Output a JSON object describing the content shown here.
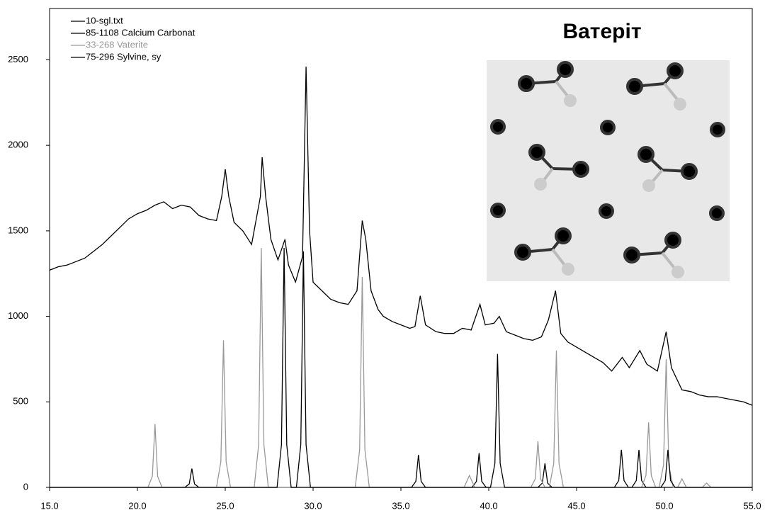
{
  "chart_data": {
    "type": "line",
    "annotations": [
      "Ватеріт"
    ],
    "xlim": [
      15,
      55
    ],
    "xticks": [
      {
        "value": 15,
        "label": "15.0"
      },
      {
        "value": 20,
        "label": "20.0"
      },
      {
        "value": 25,
        "label": "25.0"
      },
      {
        "value": 30,
        "label": "30.0"
      },
      {
        "value": 35,
        "label": "35.0"
      },
      {
        "value": 40,
        "label": "40.0"
      },
      {
        "value": 45,
        "label": "45.0"
      },
      {
        "value": 50,
        "label": "50.0"
      },
      {
        "value": 55,
        "label": "55.0"
      }
    ],
    "ylim": [
      0,
      2800
    ],
    "yticks": [
      0,
      500,
      1000,
      1500,
      2000,
      2500
    ],
    "grid": false,
    "legend": "top-left",
    "series": [
      {
        "name": "10-sgl.txt",
        "color": "#000000",
        "x": [
          15,
          15.5,
          16,
          16.5,
          17,
          17.5,
          18,
          18.5,
          19,
          19.5,
          20,
          20.5,
          21,
          21.5,
          22,
          22.5,
          23,
          23.5,
          24,
          24.5,
          24.8,
          25,
          25.2,
          25.5,
          26,
          26.5,
          27,
          27.1,
          27.3,
          27.6,
          28,
          28.3,
          28.4,
          28.6,
          29,
          29.4,
          29.6,
          29.8,
          30,
          30.5,
          31,
          31.5,
          32,
          32.5,
          32.8,
          33,
          33.3,
          33.7,
          34,
          34.5,
          35,
          35.5,
          35.8,
          36.1,
          36.4,
          37,
          37.5,
          38,
          38.5,
          39,
          39.5,
          39.8,
          40.3,
          40.6,
          41,
          41.5,
          42,
          42.5,
          43,
          43.4,
          43.8,
          44.1,
          44.5,
          45,
          45.5,
          46,
          46.5,
          47,
          47.6,
          48,
          48.6,
          49,
          49.6,
          50.1,
          50.4,
          51,
          51.5,
          52,
          52.5,
          53,
          53.5,
          54,
          54.5,
          55
        ],
        "values": [
          1270,
          1290,
          1300,
          1320,
          1340,
          1380,
          1420,
          1470,
          1520,
          1570,
          1600,
          1620,
          1650,
          1670,
          1630,
          1650,
          1640,
          1590,
          1570,
          1560,
          1700,
          1860,
          1700,
          1550,
          1500,
          1420,
          1700,
          1930,
          1700,
          1450,
          1330,
          1420,
          1450,
          1300,
          1200,
          1350,
          2460,
          1500,
          1200,
          1150,
          1100,
          1080,
          1070,
          1150,
          1560,
          1450,
          1150,
          1040,
          1000,
          970,
          950,
          930,
          940,
          1120,
          950,
          910,
          900,
          900,
          930,
          920,
          1070,
          950,
          960,
          1000,
          910,
          890,
          870,
          860,
          880,
          980,
          1150,
          900,
          850,
          820,
          790,
          760,
          730,
          680,
          760,
          700,
          800,
          720,
          680,
          910,
          700,
          570,
          560,
          540,
          530,
          530,
          520,
          510,
          500,
          480
        ]
      },
      {
        "name": "85-1108 Calcium Carbonat",
        "color": "#000000",
        "x": [
          15,
          22.7,
          22.95,
          23.1,
          23.25,
          23.5,
          29.05,
          29.3,
          29.45,
          29.6,
          29.85,
          35.6,
          35.85,
          36.0,
          36.15,
          36.4,
          39.05,
          39.3,
          39.45,
          39.6,
          39.85,
          42.8,
          43.05,
          43.2,
          43.35,
          43.6,
          47.15,
          47.4,
          47.55,
          47.7,
          47.95,
          48.15,
          48.4,
          48.55,
          48.7,
          48.95,
          55
        ],
        "values": [
          0,
          0,
          20,
          110,
          20,
          0,
          0,
          250,
          1380,
          250,
          0,
          0,
          35,
          190,
          35,
          0,
          0,
          35,
          200,
          35,
          0,
          0,
          25,
          140,
          25,
          0,
          0,
          40,
          220,
          40,
          0,
          0,
          40,
          220,
          40,
          0,
          0
        ]
      },
      {
        "name": "33-268 Vaterite",
        "color": "#999999",
        "x": [
          15,
          20.6,
          20.85,
          21.0,
          21.15,
          21.4,
          24.5,
          24.75,
          24.9,
          25.05,
          25.3,
          26.65,
          26.9,
          27.05,
          27.2,
          27.45,
          32.4,
          32.65,
          32.8,
          32.95,
          33.2,
          38.6,
          38.9,
          39.2,
          42.4,
          42.65,
          42.8,
          42.95,
          43.2,
          43.45,
          43.7,
          43.85,
          44.0,
          44.25,
          48.7,
          48.95,
          49.1,
          49.25,
          49.5,
          49.7,
          49.95,
          50.1,
          50.25,
          50.5,
          50.75,
          51.0,
          51.25,
          52.15,
          52.4,
          52.65,
          55
        ],
        "values": [
          0,
          0,
          65,
          370,
          65,
          0,
          0,
          150,
          860,
          150,
          0,
          0,
          250,
          1400,
          250,
          0,
          0,
          220,
          1230,
          220,
          0,
          0,
          70,
          0,
          0,
          50,
          270,
          50,
          0,
          0,
          140,
          800,
          140,
          0,
          0,
          70,
          380,
          70,
          0,
          0,
          130,
          750,
          130,
          0,
          0,
          50,
          0,
          0,
          25,
          0,
          0
        ]
      },
      {
        "name": "75-296 Sylvine, sy",
        "color": "#000000",
        "x": [
          15,
          27.95,
          28.2,
          28.35,
          28.5,
          28.75,
          40.1,
          40.35,
          40.5,
          40.65,
          40.9,
          49.8,
          50.05,
          50.2,
          50.35,
          50.6,
          55
        ],
        "values": [
          0,
          0,
          250,
          1400,
          250,
          0,
          0,
          140,
          780,
          140,
          0,
          0,
          40,
          220,
          40,
          0,
          0
        ]
      }
    ]
  }
}
